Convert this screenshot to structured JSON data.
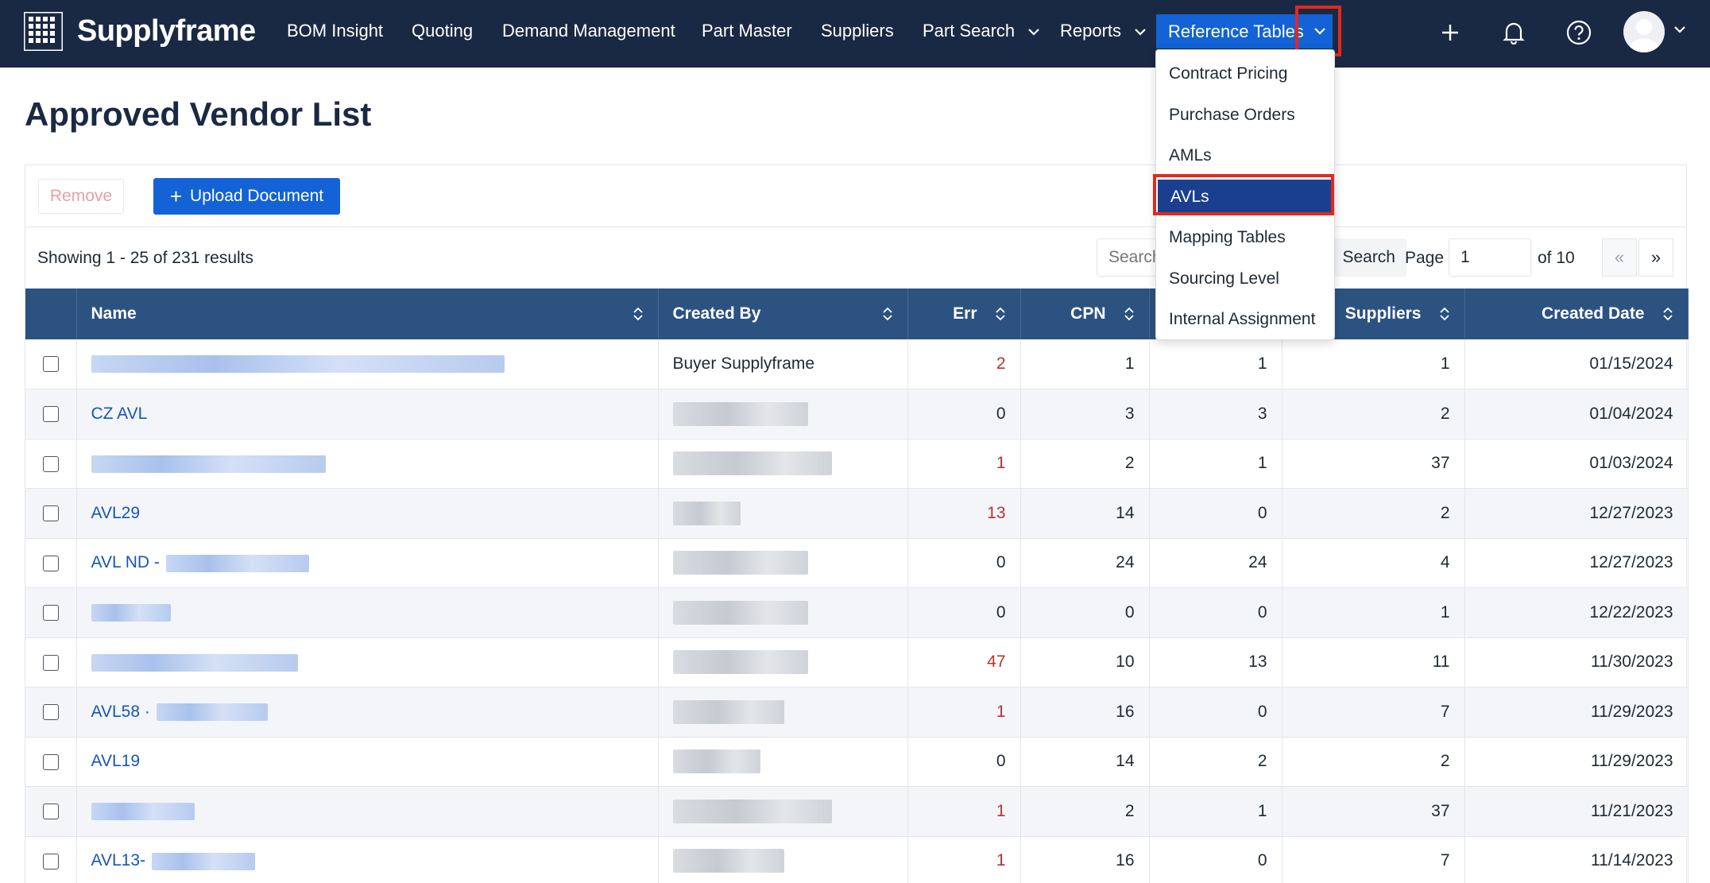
{
  "app": {
    "name": "Supplyframe"
  },
  "nav": {
    "items": [
      {
        "label": "BOM Insight"
      },
      {
        "label": "Quoting"
      },
      {
        "label": "Demand Management"
      },
      {
        "label": "Part Master"
      },
      {
        "label": "Suppliers"
      },
      {
        "label": "Part Search"
      },
      {
        "label": "Reports"
      },
      {
        "label": "Reference Tables"
      }
    ]
  },
  "dropdown": {
    "items": [
      {
        "label": "Contract Pricing"
      },
      {
        "label": "Purchase Orders"
      },
      {
        "label": "AMLs"
      },
      {
        "label": "AVLs"
      },
      {
        "label": "Mapping Tables"
      },
      {
        "label": "Sourcing Level"
      },
      {
        "label": "Internal Assignment"
      }
    ],
    "selected": "AVLs"
  },
  "page": {
    "title": "Approved Vendor List"
  },
  "toolbar": {
    "remove_label": "Remove",
    "upload_label": "Upload Document"
  },
  "results": {
    "summary": "Showing 1 - 25 of 231 results",
    "search_placeholder": "Search",
    "search_button": "Search",
    "page_label": "Page",
    "page_value": "1",
    "page_of": "of 10",
    "prev": "«",
    "next": "»"
  },
  "table": {
    "columns": [
      {
        "label": "Name"
      },
      {
        "label": "Created By"
      },
      {
        "label": "Err"
      },
      {
        "label": "CPN"
      },
      {
        "label": ""
      },
      {
        "label": "Suppliers"
      },
      {
        "label": "Created Date"
      }
    ],
    "rows": [
      {
        "name": "",
        "created_by": "Buyer Supplyframe",
        "err": "2",
        "cpn": "1",
        "col5": "1",
        "suppliers": "1",
        "date": "01/15/2024"
      },
      {
        "name": "CZ AVL",
        "created_by": "",
        "err": "0",
        "cpn": "3",
        "col5": "3",
        "suppliers": "2",
        "date": "01/04/2024"
      },
      {
        "name": "",
        "created_by": "",
        "err": "1",
        "cpn": "2",
        "col5": "1",
        "suppliers": "37",
        "date": "01/03/2024"
      },
      {
        "name": "AVL29",
        "created_by": "",
        "err": "13",
        "cpn": "14",
        "col5": "0",
        "suppliers": "2",
        "date": "12/27/2023"
      },
      {
        "name": "AVL ND -",
        "created_by": "",
        "err": "0",
        "cpn": "24",
        "col5": "24",
        "suppliers": "4",
        "date": "12/27/2023"
      },
      {
        "name": "",
        "created_by": "",
        "err": "0",
        "cpn": "0",
        "col5": "0",
        "suppliers": "1",
        "date": "12/22/2023"
      },
      {
        "name": "",
        "created_by": "",
        "err": "47",
        "cpn": "10",
        "col5": "13",
        "suppliers": "11",
        "date": "11/30/2023"
      },
      {
        "name": "AVL58 ·",
        "created_by": "",
        "err": "1",
        "cpn": "16",
        "col5": "0",
        "suppliers": "7",
        "date": "11/29/2023"
      },
      {
        "name": "AVL19",
        "created_by": "",
        "err": "0",
        "cpn": "14",
        "col5": "2",
        "suppliers": "2",
        "date": "11/29/2023"
      },
      {
        "name": "",
        "created_by": "",
        "err": "1",
        "cpn": "2",
        "col5": "1",
        "suppliers": "37",
        "date": "11/21/2023"
      },
      {
        "name": "AVL13-",
        "created_by": "",
        "err": "1",
        "cpn": "16",
        "col5": "0",
        "suppliers": "7",
        "date": "11/14/2023"
      }
    ]
  },
  "colors": {
    "nav_bg": "#1a2943",
    "accent": "#1362d6",
    "table_header": "#2c5282",
    "error_text": "#b83232",
    "highlight": "#e3291b"
  }
}
